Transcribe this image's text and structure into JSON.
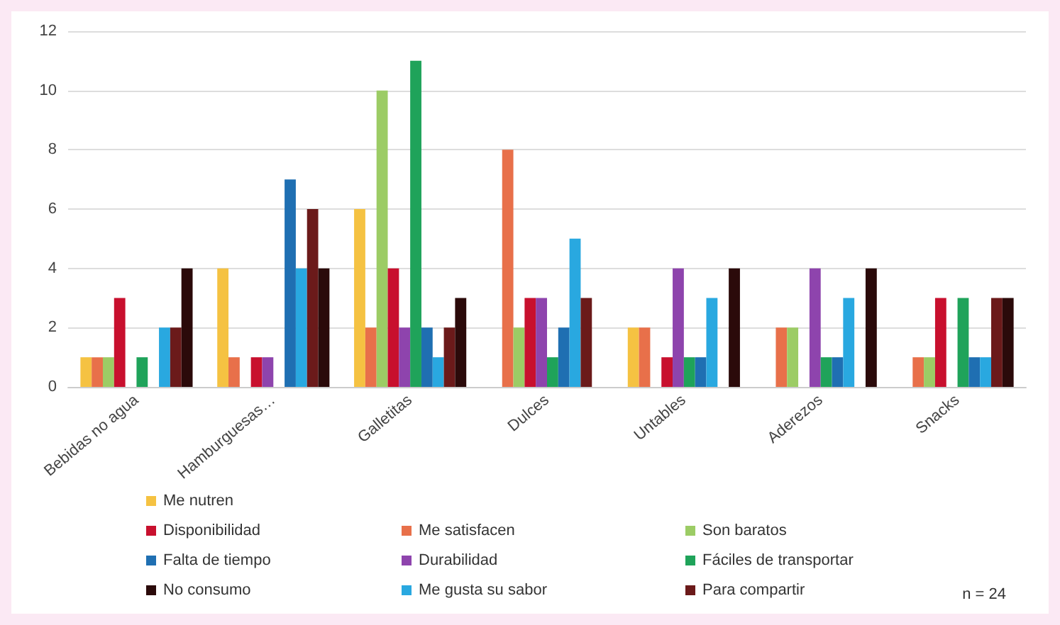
{
  "chart_data": {
    "type": "bar",
    "categories": [
      "Bebidas no agua",
      "Hamburguesas…",
      "Galletitas",
      "Dulces",
      "Untables",
      "Aderezos",
      "Snacks"
    ],
    "series": [
      {
        "name": "Me nutren",
        "color": "#f5c242",
        "values": [
          1,
          4,
          6,
          0,
          2,
          0,
          0
        ]
      },
      {
        "name": "Me satisfacen",
        "color": "#e8704a",
        "values": [
          1,
          1,
          2,
          8,
          2,
          2,
          1
        ]
      },
      {
        "name": "Son baratos",
        "color": "#9ccc65",
        "values": [
          1,
          0,
          10,
          2,
          0,
          2,
          1
        ]
      },
      {
        "name": "Disponibilidad",
        "color": "#c8102e",
        "values": [
          3,
          1,
          4,
          3,
          1,
          0,
          3
        ]
      },
      {
        "name": "Durabilidad",
        "color": "#8e44ad",
        "values": [
          0,
          1,
          2,
          3,
          4,
          4,
          0
        ]
      },
      {
        "name": "Fáciles de transportar",
        "color": "#1fa35a",
        "values": [
          1,
          0,
          11,
          1,
          1,
          1,
          3
        ]
      },
      {
        "name": "Falta de tiempo",
        "color": "#1f6fb2",
        "values": [
          0,
          7,
          2,
          2,
          1,
          1,
          1
        ]
      },
      {
        "name": "Me gusta su sabor",
        "color": "#29a8e0",
        "values": [
          2,
          4,
          1,
          5,
          3,
          3,
          1
        ]
      },
      {
        "name": "Para compartir",
        "color": "#6b1a1a",
        "values": [
          2,
          6,
          2,
          3,
          0,
          0,
          3
        ]
      },
      {
        "name": "No consumo",
        "color": "#2b0a0a",
        "values": [
          4,
          4,
          3,
          0,
          4,
          4,
          3
        ]
      }
    ],
    "ylim": [
      0,
      12
    ],
    "yticks": [
      0,
      2,
      4,
      6,
      8,
      10,
      12
    ],
    "grid": "y",
    "legend": "bottom",
    "annotations": [
      "n = 24"
    ]
  }
}
